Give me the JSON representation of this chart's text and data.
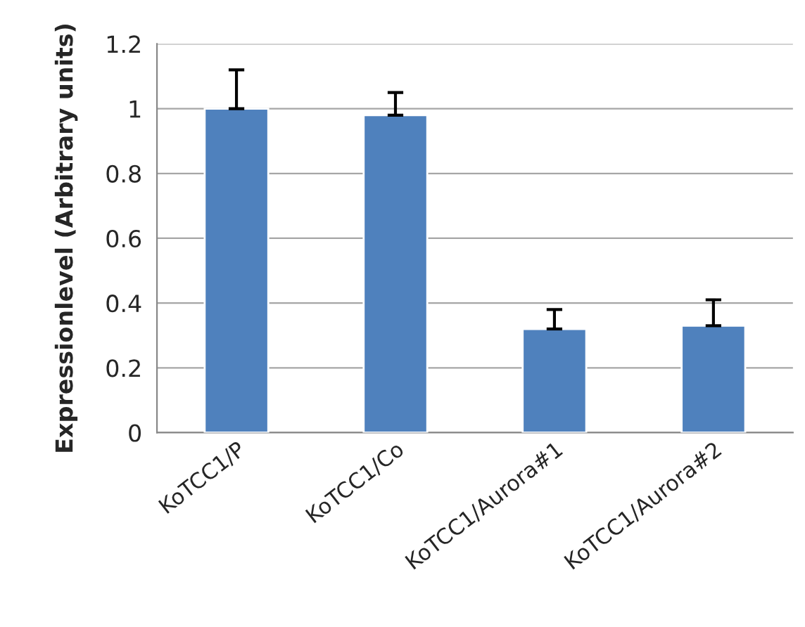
{
  "chart_data": {
    "type": "bar",
    "ylabel": "Expressionlevel (Arbitrary units)",
    "categories": [
      "KoTCC1/P",
      "KoTCC1/Co",
      "KoTCC1/Aurora#1",
      "KoTCC1/Aurora#2"
    ],
    "values": [
      1.0,
      0.98,
      0.32,
      0.33
    ],
    "errors": [
      [
        1.0,
        1.12
      ],
      [
        0.98,
        1.05
      ],
      [
        0.32,
        0.38
      ],
      [
        0.33,
        0.41
      ]
    ],
    "color": "#4f81bd",
    "ylim": [
      0,
      1.2
    ],
    "yticks": [
      0,
      0.2,
      0.4,
      0.6,
      0.8,
      1,
      1.2
    ],
    "grid": "y"
  }
}
